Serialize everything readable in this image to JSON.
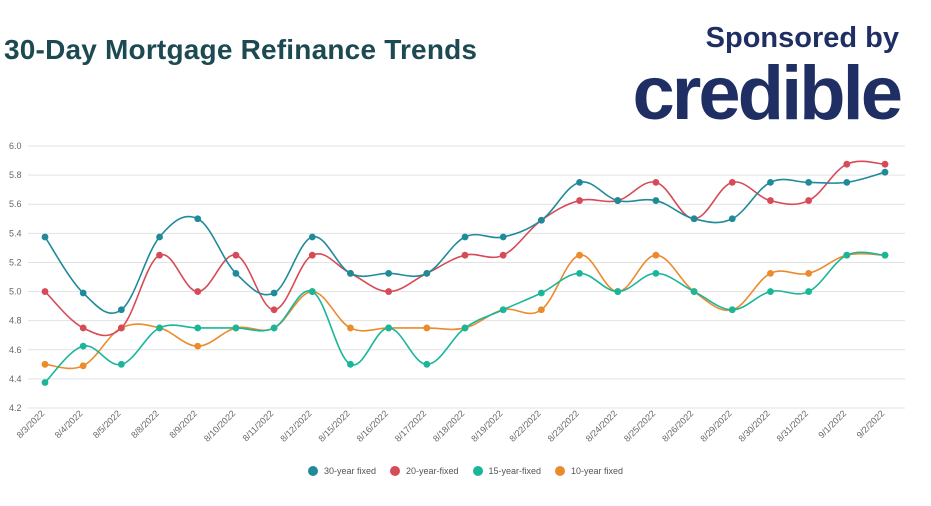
{
  "header": {
    "title": "30-Day Mortgage Refinance Trends",
    "sponsor_label": "Sponsored by",
    "sponsor_name": "credible"
  },
  "colors": {
    "title": "#1d4a52",
    "sponsor": "#1f2f64",
    "grid": "#e3e3e3",
    "tick": "#666666"
  },
  "chart_data": {
    "type": "line",
    "title": "30-Day Mortgage Refinance Trends",
    "xlabel": "",
    "ylabel": "",
    "ylim": [
      4.2,
      6.0
    ],
    "yticks": [
      "6.0",
      "5.8",
      "5.6",
      "5.4",
      "5.2",
      "5.0",
      "4.8",
      "4.6",
      "4.4",
      "4.2"
    ],
    "grid": true,
    "legend_position": "bottom-center",
    "categories": [
      "8/3/2022",
      "8/4/2022",
      "8/5/2022",
      "8/8/2022",
      "8/9/2022",
      "8/10/2022",
      "8/11/2022",
      "8/12/2022",
      "8/15/2022",
      "8/16/2022",
      "8/17/2022",
      "8/18/2022",
      "8/19/2022",
      "8/22/2022",
      "8/23/2022",
      "8/24/2022",
      "8/25/2022",
      "8/26/2022",
      "8/29/2022",
      "8/30/2022",
      "8/31/2022",
      "9/1/2022",
      "9/2/2022"
    ],
    "series": [
      {
        "name": "30-year fixed",
        "color": "#1f8a9a",
        "values": [
          5.375,
          4.99,
          4.875,
          5.375,
          5.5,
          5.125,
          4.99,
          5.375,
          5.125,
          5.125,
          5.125,
          5.375,
          5.375,
          5.49,
          5.75,
          5.625,
          5.625,
          5.5,
          5.5,
          5.75,
          5.75,
          5.75,
          5.82
        ]
      },
      {
        "name": "20-year-fixed",
        "color": "#d64b57",
        "values": [
          5.0,
          4.75,
          4.75,
          5.25,
          5.0,
          5.25,
          4.875,
          5.25,
          5.125,
          5.0,
          5.125,
          5.25,
          5.25,
          5.49,
          5.625,
          5.625,
          5.75,
          5.5,
          5.75,
          5.625,
          5.625,
          5.875,
          5.875
        ]
      },
      {
        "name": "15-year-fixed",
        "color": "#1ab69a",
        "values": [
          4.375,
          4.625,
          4.5,
          4.75,
          4.75,
          4.75,
          4.75,
          5.0,
          4.5,
          4.75,
          4.5,
          4.75,
          4.875,
          4.99,
          5.125,
          5.0,
          5.125,
          5.0,
          4.875,
          5.0,
          5.0,
          5.25,
          5.25
        ]
      },
      {
        "name": "10-year fixed",
        "color": "#ea8b2e",
        "values": [
          4.5,
          4.49,
          4.75,
          4.75,
          4.625,
          4.75,
          4.75,
          5.0,
          4.75,
          4.75,
          4.75,
          4.75,
          4.875,
          4.875,
          5.25,
          5.0,
          5.25,
          5.0,
          4.875,
          5.125,
          5.125,
          5.25,
          5.25
        ]
      }
    ]
  }
}
